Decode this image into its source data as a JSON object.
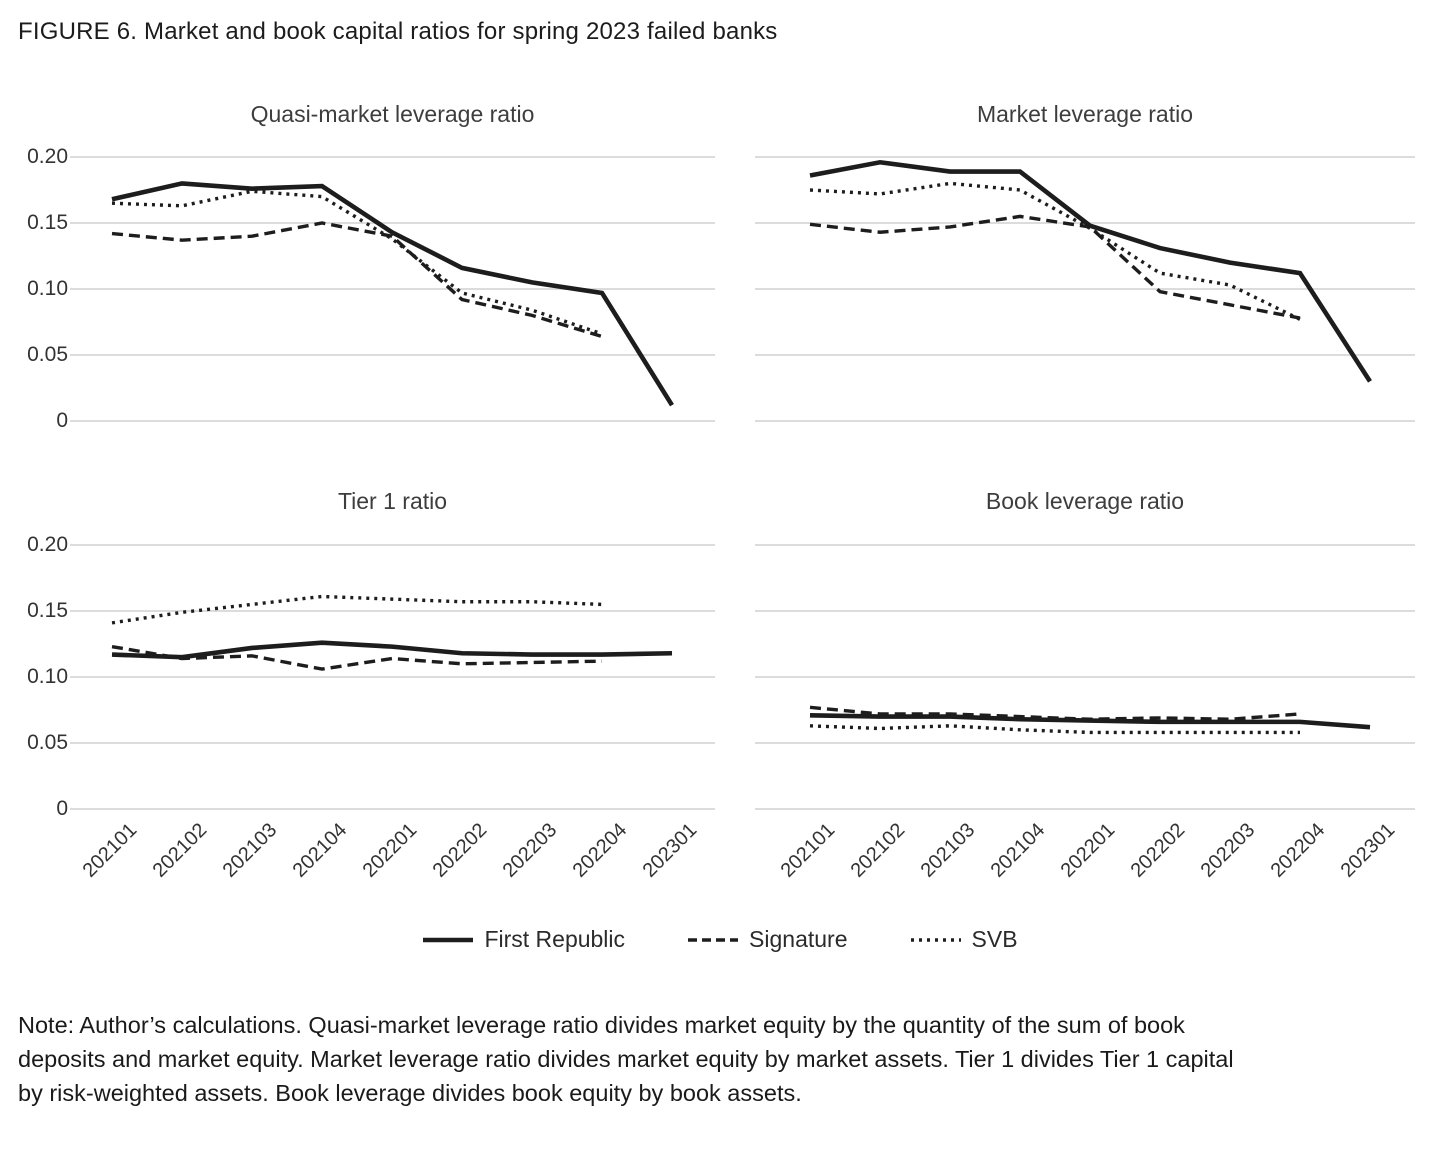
{
  "figure_title": "FIGURE 6. Market and book capital ratios for spring 2023 failed banks",
  "colors": {
    "line": "#1d1d1d",
    "grid": "#dcdcdc",
    "text": "#333333"
  },
  "y_axis": {
    "tick_values": [
      0.2,
      0.15,
      0.1,
      0.05,
      0
    ],
    "tick_labels": [
      "0.20",
      "0.15",
      "0.10",
      "0.05",
      "0"
    ]
  },
  "legend": [
    {
      "name": "First Republic",
      "style": "solid"
    },
    {
      "name": "Signature",
      "style": "dashed"
    },
    {
      "name": "SVB",
      "style": "dotted"
    }
  ],
  "note_lines": [
    "Note: Author’s calculations. Quasi-market leverage ratio divides market equity by the quantity of the sum of book",
    "deposits and market equity. Market leverage ratio divides market equity by market assets. Tier 1 divides Tier 1 capital",
    "by risk-weighted assets. Book leverage divides book equity by book assets."
  ],
  "chart_data": [
    {
      "type": "line",
      "title": "Quasi-market leverage ratio",
      "categories": [
        "202101",
        "202102",
        "202103",
        "202104",
        "202201",
        "202202",
        "202203",
        "202204",
        "202301"
      ],
      "series": [
        {
          "name": "First Republic",
          "style": "solid",
          "values": [
            0.168,
            0.18,
            0.176,
            0.178,
            0.143,
            0.116,
            0.105,
            0.097,
            0.012
          ]
        },
        {
          "name": "Signature",
          "style": "dashed",
          "values": [
            0.142,
            0.137,
            0.14,
            0.15,
            0.14,
            0.092,
            0.08,
            0.064,
            null
          ]
        },
        {
          "name": "SVB",
          "style": "dotted",
          "values": [
            0.165,
            0.163,
            0.174,
            0.17,
            0.138,
            0.097,
            0.084,
            0.066,
            null
          ]
        }
      ],
      "ylim": [
        0,
        0.21
      ],
      "grid": true,
      "show_y_tick_labels": true,
      "show_x_tick_labels": false
    },
    {
      "type": "line",
      "title": "Market leverage ratio",
      "categories": [
        "202101",
        "202102",
        "202103",
        "202104",
        "202201",
        "202202",
        "202203",
        "202204",
        "202301"
      ],
      "series": [
        {
          "name": "First Republic",
          "style": "solid",
          "values": [
            0.186,
            0.196,
            0.189,
            0.189,
            0.148,
            0.131,
            0.12,
            0.112,
            0.03
          ]
        },
        {
          "name": "Signature",
          "style": "dashed",
          "values": [
            0.149,
            0.143,
            0.147,
            0.155,
            0.147,
            0.098,
            0.088,
            0.078,
            null
          ]
        },
        {
          "name": "SVB",
          "style": "dotted",
          "values": [
            0.175,
            0.172,
            0.18,
            0.175,
            0.146,
            0.112,
            0.103,
            0.077,
            null
          ]
        }
      ],
      "ylim": [
        0,
        0.21
      ],
      "grid": true,
      "show_y_tick_labels": false,
      "show_x_tick_labels": false
    },
    {
      "type": "line",
      "title": "Tier 1 ratio",
      "categories": [
        "202101",
        "202102",
        "202103",
        "202104",
        "202201",
        "202202",
        "202203",
        "202204",
        "202301"
      ],
      "series": [
        {
          "name": "First Republic",
          "style": "solid",
          "values": [
            0.117,
            0.115,
            0.122,
            0.126,
            0.123,
            0.118,
            0.117,
            0.117,
            0.118
          ]
        },
        {
          "name": "Signature",
          "style": "dashed",
          "values": [
            0.123,
            0.114,
            0.116,
            0.106,
            0.114,
            0.11,
            0.111,
            0.112,
            null
          ]
        },
        {
          "name": "SVB",
          "style": "dotted",
          "values": [
            0.141,
            0.149,
            0.155,
            0.161,
            0.159,
            0.157,
            0.157,
            0.155,
            null
          ]
        }
      ],
      "ylim": [
        0,
        0.21
      ],
      "grid": true,
      "show_y_tick_labels": true,
      "show_x_tick_labels": true
    },
    {
      "type": "line",
      "title": "Book leverage ratio",
      "categories": [
        "202101",
        "202102",
        "202103",
        "202104",
        "202201",
        "202202",
        "202203",
        "202204",
        "202301"
      ],
      "series": [
        {
          "name": "First Republic",
          "style": "solid",
          "values": [
            0.071,
            0.07,
            0.07,
            0.068,
            0.067,
            0.066,
            0.066,
            0.066,
            0.062
          ]
        },
        {
          "name": "Signature",
          "style": "dashed",
          "values": [
            0.077,
            0.072,
            0.072,
            0.07,
            0.068,
            0.069,
            0.068,
            0.072,
            null
          ]
        },
        {
          "name": "SVB",
          "style": "dotted",
          "values": [
            0.063,
            0.061,
            0.063,
            0.06,
            0.058,
            0.058,
            0.058,
            0.058,
            null
          ]
        }
      ],
      "ylim": [
        0,
        0.21
      ],
      "grid": true,
      "show_y_tick_labels": false,
      "show_x_tick_labels": true
    }
  ]
}
